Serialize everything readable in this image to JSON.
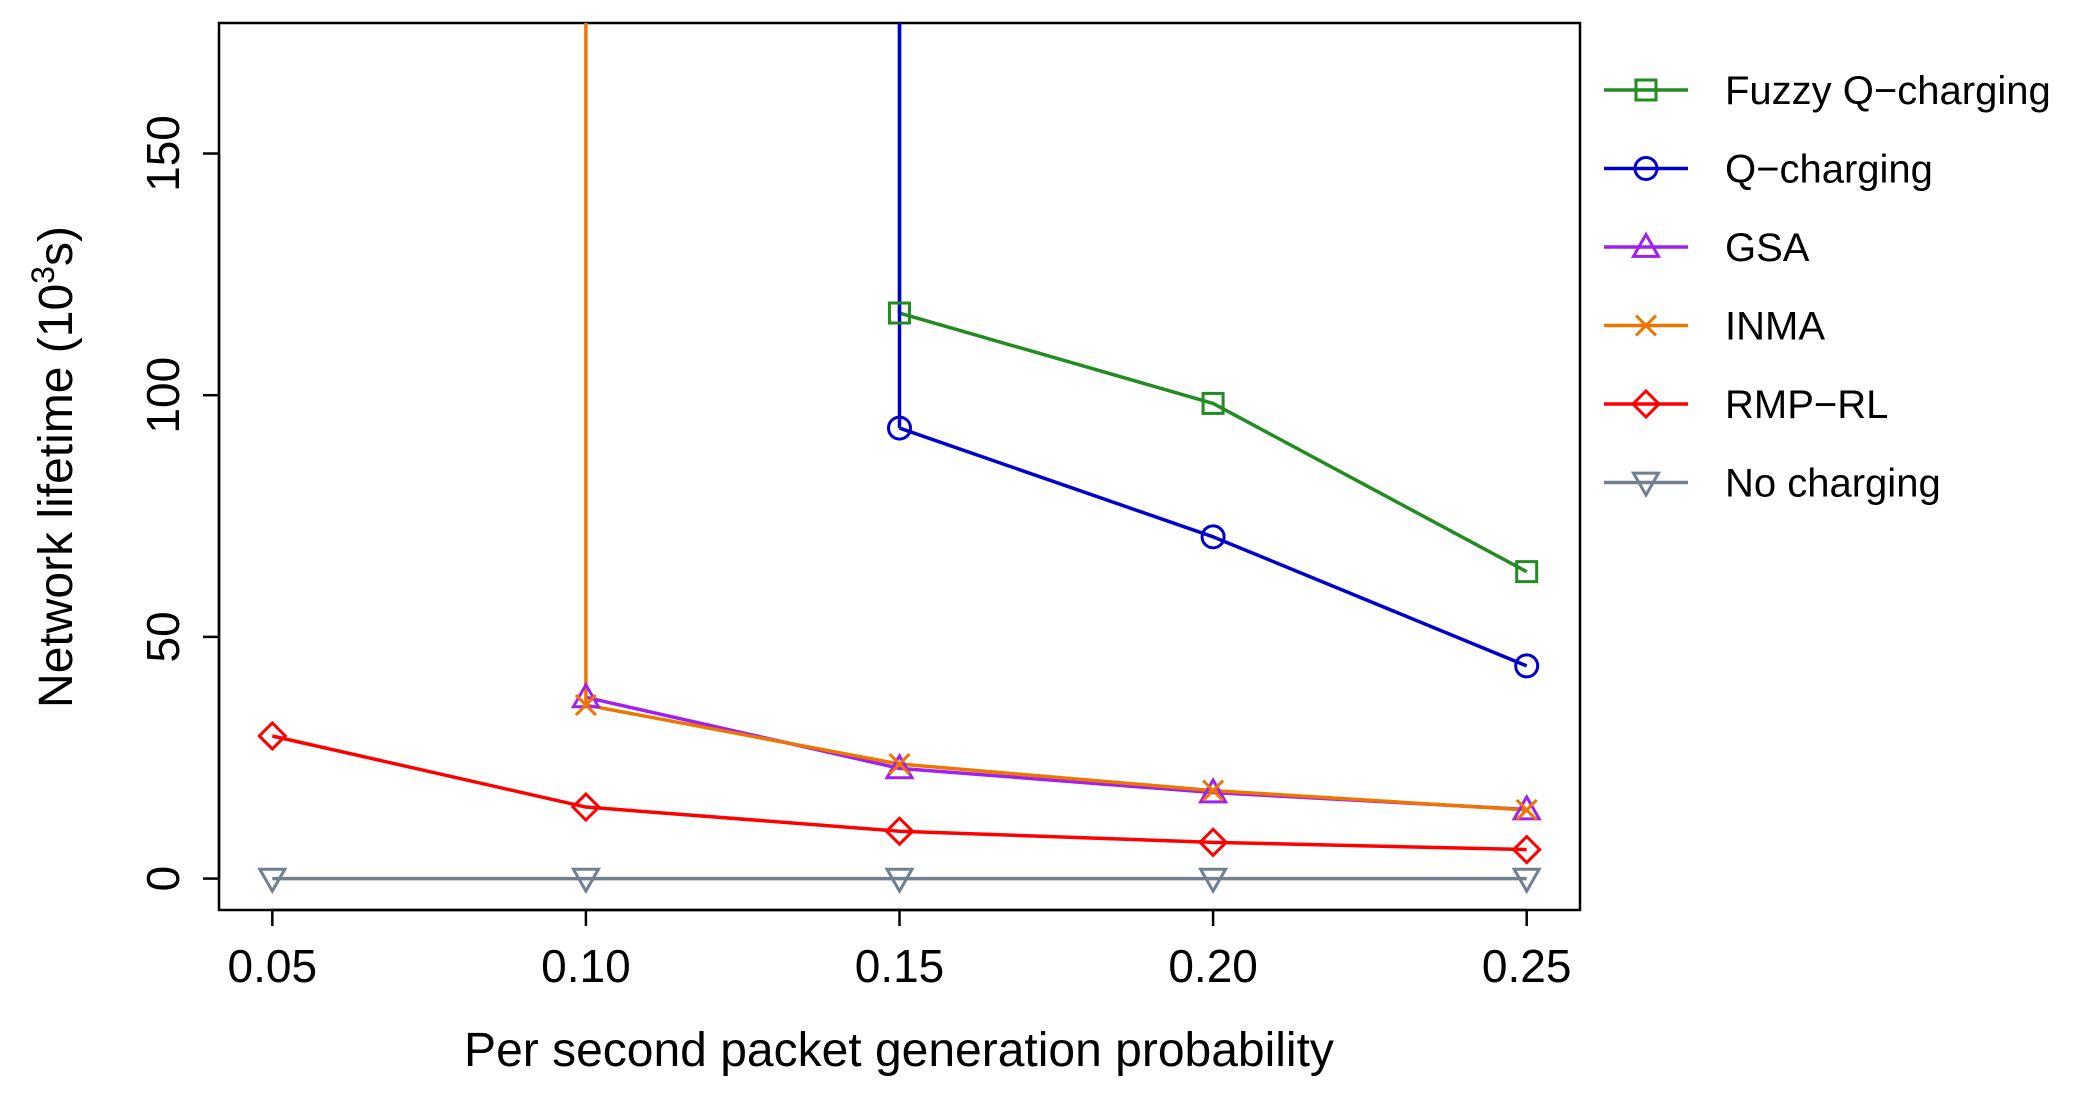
{
  "chart_data": {
    "type": "line",
    "title": "",
    "xlabel": "Per second packet generation probability",
    "ylabel_main": "Network lifetime (10",
    "ylabel_sup": "3",
    "ylabel_tail": "s)",
    "x": [
      0.05,
      0.1,
      0.15,
      0.2,
      0.25
    ],
    "x_tick_labels": [
      "0.05",
      "0.10",
      "0.15",
      "0.20",
      "0.25"
    ],
    "y_ticks": [
      0,
      50,
      100,
      150
    ],
    "y_tick_labels": [
      "0",
      "50",
      "100",
      "150"
    ],
    "xlim": [
      0.0415,
      0.2585
    ],
    "ylim": [
      -6.5,
      177
    ],
    "legend_position": "outside-right",
    "series": [
      {
        "name": "Fuzzy Q−charging",
        "color": "#228B22",
        "marker": "square",
        "x": [
          0.15,
          0.2,
          0.25
        ],
        "values": [
          117,
          98.3,
          63.5
        ],
        "offscale_from": {
          "x": 0.15,
          "direction": "up"
        }
      },
      {
        "name": "Q−charging",
        "color": "#0000CD",
        "marker": "circle",
        "x": [
          0.15,
          0.2,
          0.25
        ],
        "values": [
          93.2,
          70.7,
          44
        ],
        "offscale_from": {
          "x": 0.15,
          "direction": "up"
        }
      },
      {
        "name": "GSA",
        "color": "#A020F0",
        "marker": "triangle-up",
        "x": [
          0.1,
          0.15,
          0.2,
          0.25
        ],
        "values": [
          37.5,
          22.8,
          17.8,
          14.3
        ],
        "offscale_from": null
      },
      {
        "name": "INMA",
        "color": "#EE7600",
        "marker": "x",
        "x": [
          0.1,
          0.15,
          0.2,
          0.25
        ],
        "values": [
          35.9,
          23.7,
          18.2,
          14.2
        ],
        "offscale_from": {
          "x": 0.1,
          "direction": "up"
        }
      },
      {
        "name": "RMP−RL",
        "color": "#FF0000",
        "marker": "diamond",
        "x": [
          0.05,
          0.1,
          0.15,
          0.2,
          0.25
        ],
        "values": [
          29.5,
          14.8,
          9.8,
          7.5,
          6
        ],
        "offscale_from": null
      },
      {
        "name": "No charging",
        "color": "#708090",
        "marker": "triangle-down",
        "x": [
          0.05,
          0.1,
          0.15,
          0.2,
          0.25
        ],
        "values": [
          0,
          0,
          0,
          0,
          0
        ],
        "offscale_from": null
      }
    ]
  }
}
